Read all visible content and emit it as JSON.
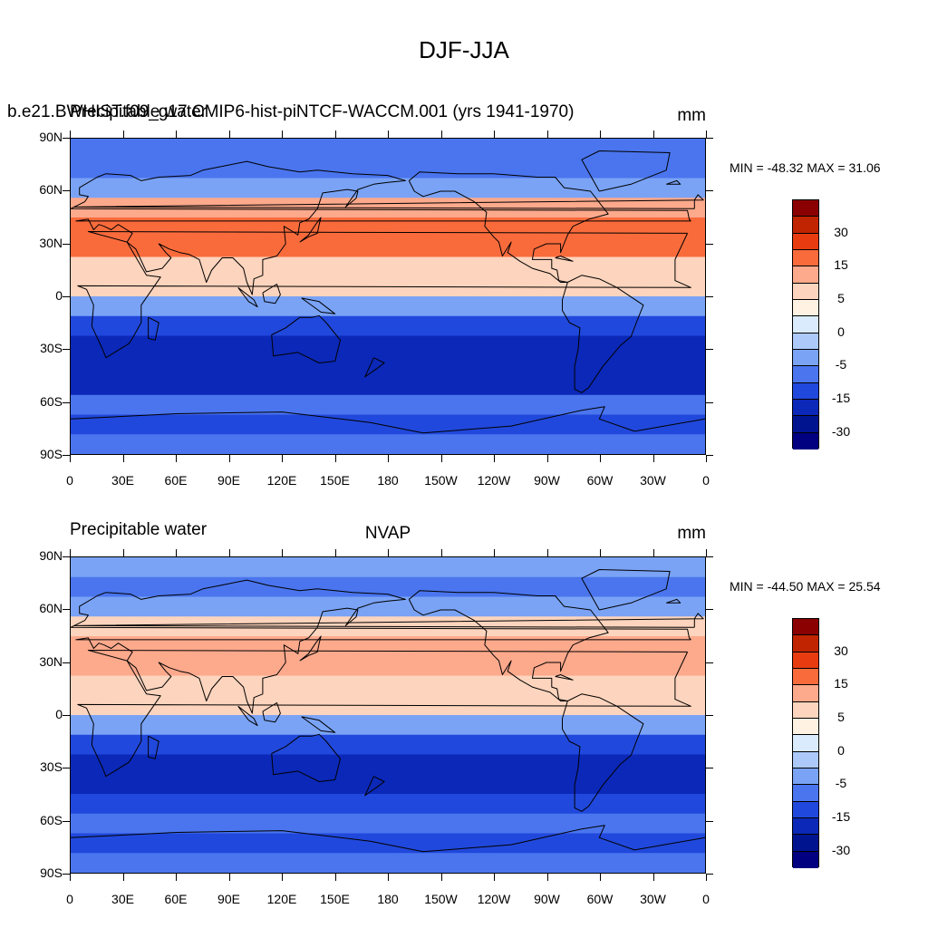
{
  "main_title": "DJF-JJA",
  "panels": [
    {
      "left_title_a": "b.e21.BWHIST.f09_g17.CMIP6-hist-piNTCF-WACCM.001 (yrs 1941-1970)",
      "left_title_b": "Precipitable water",
      "center_title": "",
      "units": "mm",
      "min_max": "MIN = -48.32 MAX =  31.06",
      "lat_bands": [
        -2,
        -2,
        -1,
        2,
        3,
        3,
        1,
        1,
        -1,
        -3,
        -4,
        -4,
        -4,
        -2,
        -3,
        -2
      ]
    },
    {
      "left_title_a": "",
      "left_title_b": "Precipitable water",
      "center_title": "NVAP",
      "units": "mm",
      "min_max": "MIN = -44.50 MAX =  25.54",
      "lat_bands": [
        -1,
        -2,
        -1,
        1,
        2,
        2,
        1,
        1,
        -1,
        -3,
        -4,
        -4,
        -3,
        -2,
        -3,
        -2
      ]
    }
  ],
  "y_ticks": [
    "90N",
    "60N",
    "30N",
    "0",
    "30S",
    "60S",
    "90S"
  ],
  "x_ticks": [
    "0",
    "30E",
    "60E",
    "90E",
    "120E",
    "150E",
    "180",
    "150W",
    "120W",
    "90W",
    "60W",
    "30W",
    "0"
  ],
  "colorbar": {
    "colors": [
      "#8b0000",
      "#c02400",
      "#e83c10",
      "#fa6b3c",
      "#fca98c",
      "#fdd4bd",
      "#fff2e3",
      "#d9ebfd",
      "#acc9fa",
      "#7aa3f5",
      "#4a75ee",
      "#2148dc",
      "#0b28b8",
      "#00148f",
      "#000080"
    ],
    "labels": [
      "30",
      "15",
      "5",
      "0",
      "-5",
      "-15",
      "-30"
    ]
  },
  "palette": {
    "-4": "#0b28b8",
    "-3": "#2148dc",
    "-2": "#4a75ee",
    "-1": "#7aa3f5",
    "0": "#fff2e3",
    "1": "#fdd4bd",
    "2": "#fca98c",
    "3": "#fa6b3c"
  },
  "coastline_color": "#000000"
}
